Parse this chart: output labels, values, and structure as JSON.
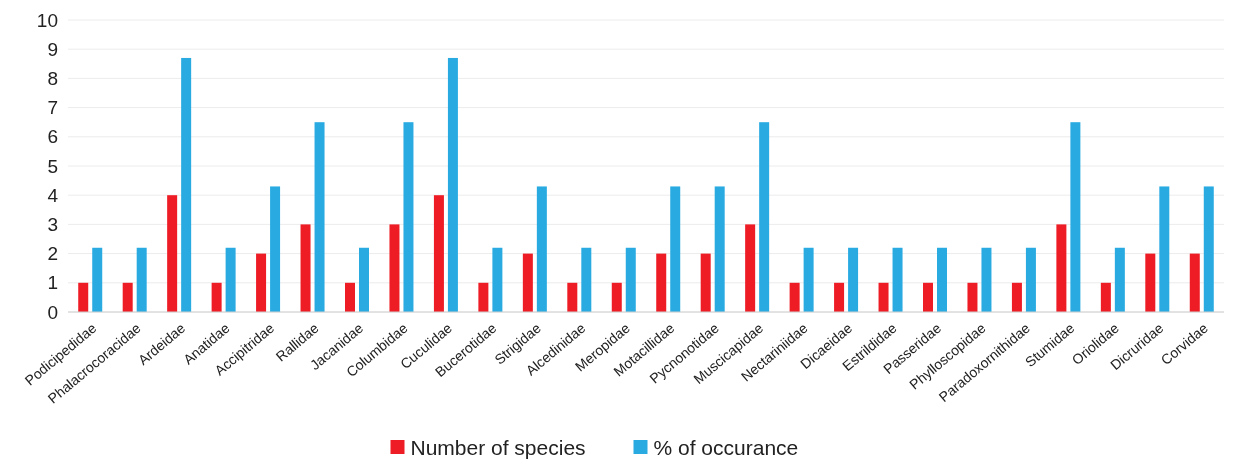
{
  "chart_data": {
    "type": "bar",
    "categories": [
      "Podicipedidae",
      "Phalacrocoracidae",
      "Ardeidae",
      "Anatidae",
      "Accipitridae",
      "Rallidae",
      "Jacanidae",
      "Columbidae",
      "Cuculidae",
      "Bucerotidae",
      "Strigidae",
      "Alcedinidae",
      "Meropidae",
      "Motacillidae",
      "Pycnonotidae",
      "Muscicapidae",
      "Nectariniidae",
      "Dicaeidae",
      "Estrildidae",
      "Passeridae",
      "Phylloscopidae",
      "Paradoxornithidae",
      "Stumidae",
      "Oriolidae",
      "Dicruridae",
      "Corvidae"
    ],
    "series": [
      {
        "name": "Number of species",
        "color": "#ee1c25",
        "values": [
          1,
          1,
          4,
          1,
          2,
          3,
          1,
          3,
          4,
          1,
          2,
          1,
          1,
          2,
          2,
          3,
          1,
          1,
          1,
          1,
          1,
          1,
          3,
          1,
          2,
          2
        ]
      },
      {
        "name": "% of occurance",
        "color": "#29abe2",
        "values": [
          2.2,
          2.2,
          8.7,
          2.2,
          4.3,
          6.5,
          2.2,
          6.5,
          8.7,
          2.2,
          4.3,
          2.2,
          2.2,
          4.3,
          4.3,
          6.5,
          2.2,
          2.2,
          2.2,
          2.2,
          2.2,
          2.2,
          6.5,
          2.2,
          4.3,
          4.3
        ]
      }
    ],
    "ylim": [
      0,
      10
    ],
    "yticks": [
      0,
      1,
      2,
      3,
      4,
      5,
      6,
      7,
      8,
      9,
      10
    ],
    "grid": "y",
    "legend": "bottom"
  }
}
